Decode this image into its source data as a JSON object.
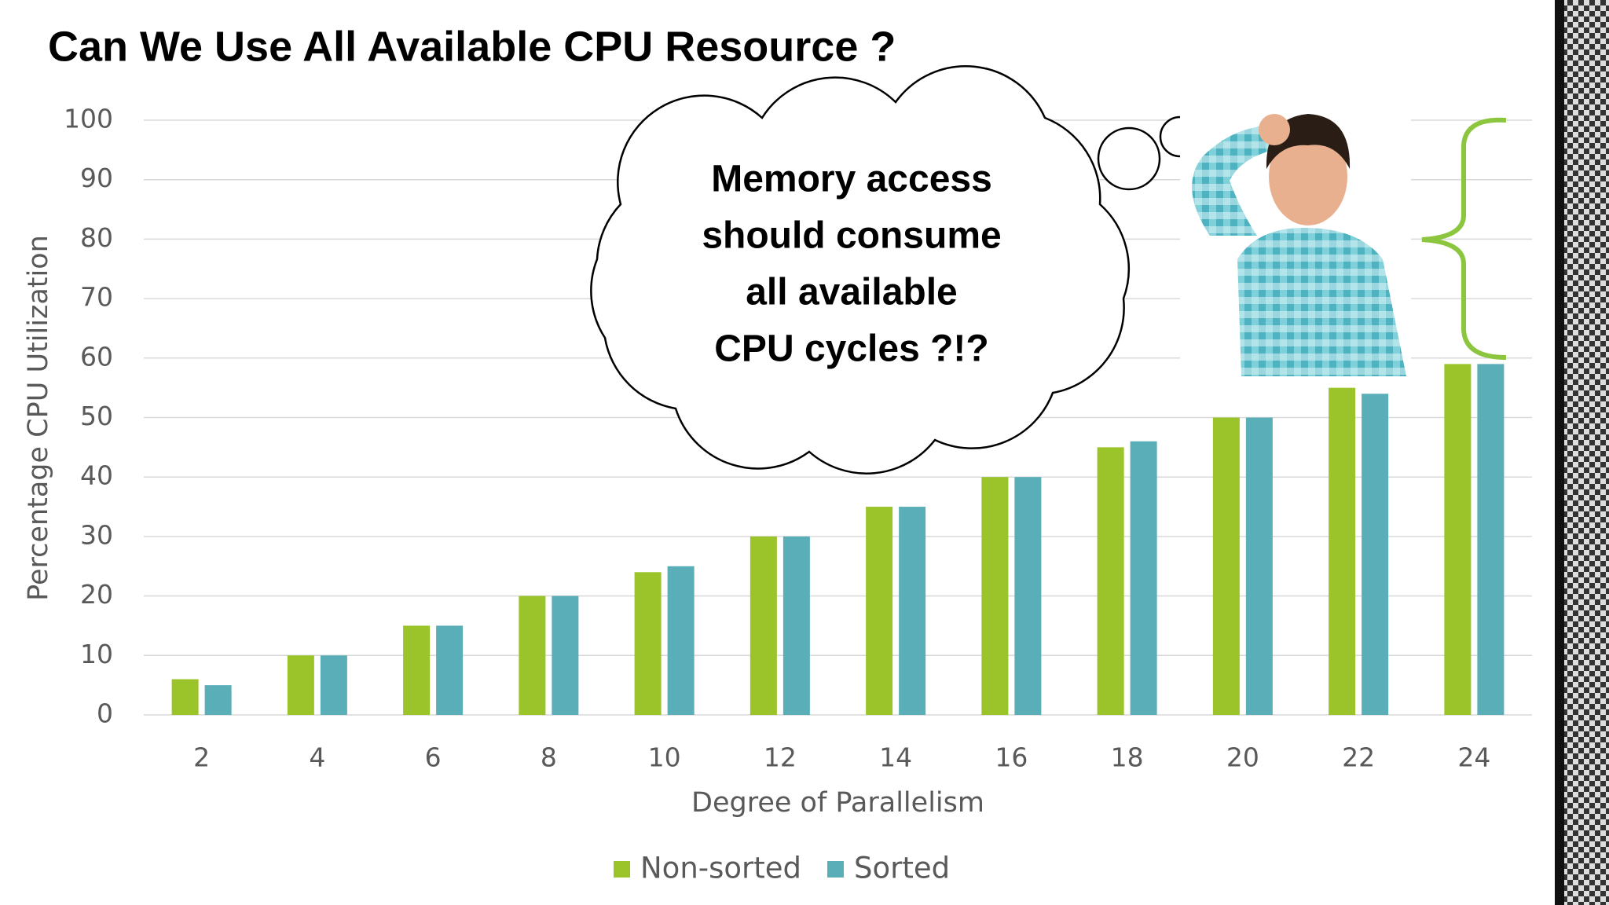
{
  "chart_data": {
    "type": "bar",
    "title": "Can We Use All Available CPU Resource ?",
    "annotation": [
      "Memory access",
      "should consume",
      "all available",
      "CPU cycles ?!?"
    ],
    "x_label": "Degree of Parallelism",
    "y_label": "Percentage CPU Utilization",
    "categories": [
      "2",
      "4",
      "6",
      "8",
      "10",
      "12",
      "14",
      "16",
      "18",
      "20",
      "22",
      "24"
    ],
    "series": [
      {
        "name": "Non-sorted",
        "color": "#9ac42a",
        "values": [
          6,
          10,
          15,
          20,
          24,
          30,
          35,
          40,
          45,
          50,
          55,
          59
        ]
      },
      {
        "name": "Sorted",
        "color": "#5aaeb8",
        "values": [
          5,
          10,
          15,
          20,
          25,
          30,
          35,
          40,
          46,
          50,
          54,
          59
        ]
      }
    ],
    "ylim": [
      0,
      100
    ],
    "yticks": [
      0,
      10,
      20,
      30,
      40,
      50,
      60,
      70,
      80,
      90,
      100
    ],
    "grid": true,
    "legend": "bottom"
  }
}
